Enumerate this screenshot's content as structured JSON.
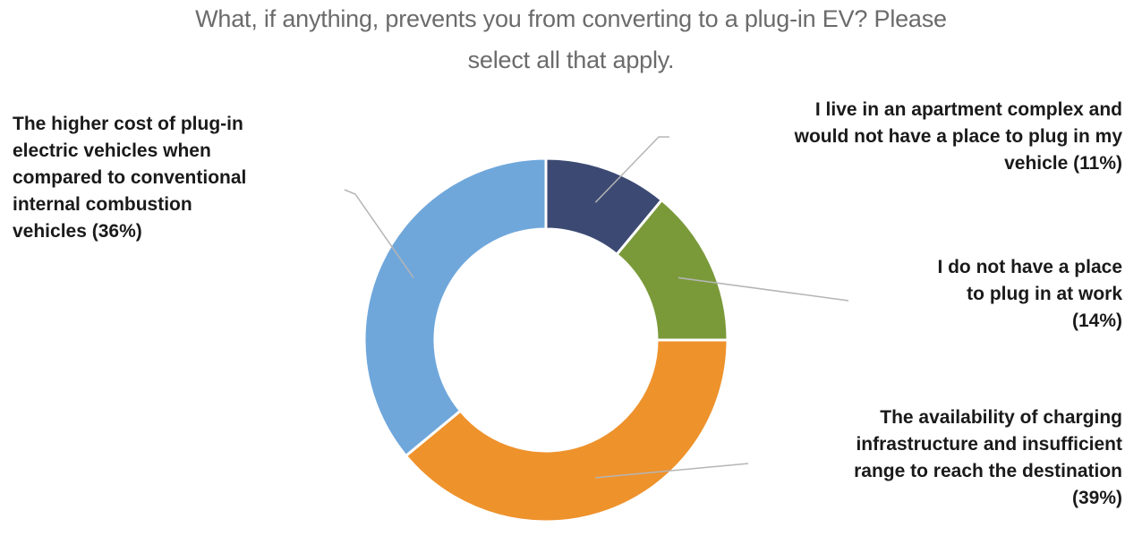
{
  "chart_data": {
    "type": "pie",
    "donut": true,
    "title_lines": [
      "What, if anything, prevents you from converting to a plug-in EV? Please",
      "select all that apply."
    ],
    "slices": [
      {
        "label_lines": [
          "I live in an apartment complex and",
          "would not have a place to plug in my",
          "vehicle (11%)"
        ],
        "value": 11,
        "color": "#3c4a73"
      },
      {
        "label_lines": [
          "I do not have a place",
          "to plug in at work",
          "(14%)"
        ],
        "value": 14,
        "color": "#7a9a3a"
      },
      {
        "label_lines": [
          "The availability of charging",
          "infrastructure and insufficient",
          "range to reach the destination",
          "(39%)"
        ],
        "value": 39,
        "color": "#ee922c"
      },
      {
        "label_lines": [
          "The higher cost of plug-in",
          "electric vehicles when",
          "compared to conventional",
          "internal combustion",
          "vehicles (36%)"
        ],
        "value": 36,
        "color": "#6fa7db"
      }
    ],
    "legend": "none"
  }
}
